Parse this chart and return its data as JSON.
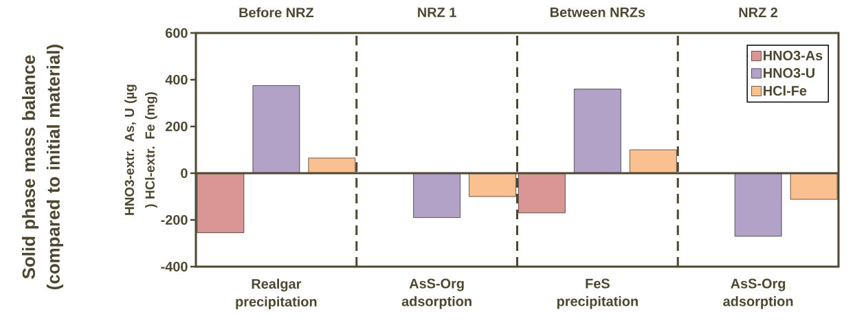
{
  "chart_data": {
    "type": "bar",
    "categories": [
      "Realgar precipitation",
      "AsS-Org adsorption",
      "FeS precipitation",
      "AsS-Org adsorption"
    ],
    "ylabel": "HNO3-extr. As, U (µg ) HCl-extr. Fe (mg)",
    "series": [
      {
        "name": "HNO3-As",
        "color": "#d99694",
        "values": [
          -255,
          null,
          -170,
          null
        ]
      },
      {
        "name": "HNO3-U",
        "color": "#b3a2c7",
        "values": [
          375,
          -190,
          360,
          -270
        ]
      },
      {
        "name": "HCl-Fe",
        "color": "#fac090",
        "values": [
          65,
          -100,
          100,
          -112
        ]
      }
    ],
    "ylim": [
      -400,
      600
    ],
    "yticks": [
      -400,
      -200,
      0,
      200,
      400,
      600
    ],
    "annotations": [
      "Before NRZ",
      "NRZ 1",
      "Between NRZs",
      "NRZ 2",
      "Solid phase mass balance (compared to initial material)"
    ],
    "legend": "top right",
    "grid": false
  }
}
